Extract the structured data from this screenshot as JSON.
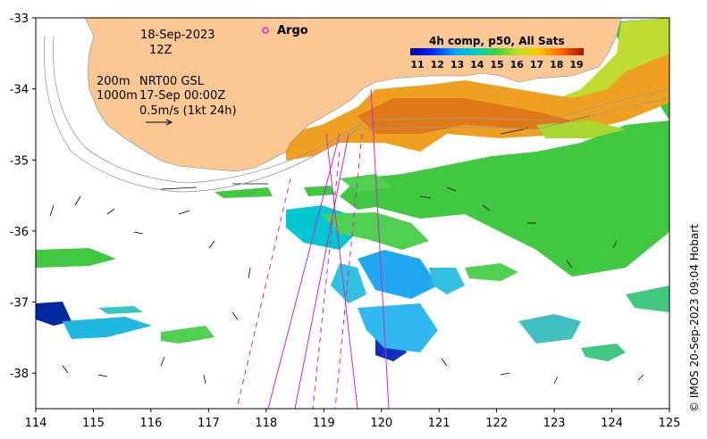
{
  "map": {
    "date_line": "18-Sep-2023",
    "time_line": "12Z",
    "depth_200": "200m",
    "depth_1000": "1000m",
    "current_source": "NRT00 GSL",
    "current_date": "17-Sep 00:00Z",
    "scale_label": "0.5m/s (1kt 24h)",
    "argo_label": "Argo",
    "colorbar_title": "4h comp, p50, All Sats",
    "colorbar_ticks": [
      "11",
      "12",
      "13",
      "14",
      "15",
      "16",
      "17",
      "18",
      "19"
    ],
    "credit": "© IMOS 20-Sep-2023 09:04 Hobart",
    "x_ticks": [
      "114",
      "115",
      "116",
      "117",
      "118",
      "119",
      "120",
      "121",
      "122",
      "123",
      "124",
      "125"
    ],
    "y_ticks": [
      "-33",
      "-34",
      "-35",
      "-36",
      "-37",
      "-38"
    ],
    "lon_range": [
      114,
      125
    ],
    "lat_range": [
      -38.5,
      -33
    ],
    "colors": {
      "land": "#fbc894",
      "argo": "#e020e0",
      "track": "#cc22cc",
      "sst_cold": "#000080",
      "sst_warm": "#a01000"
    }
  }
}
